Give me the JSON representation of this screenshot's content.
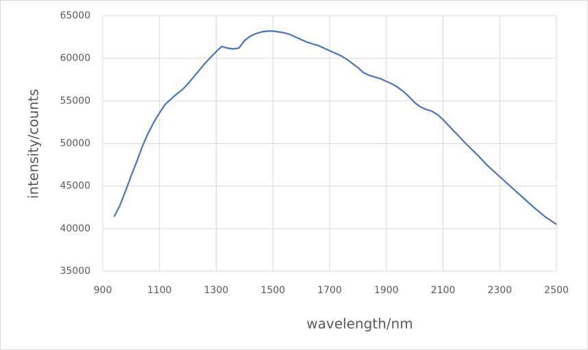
{
  "chart_data": {
    "type": "line",
    "x_label": "wavelength/nm",
    "y_label": "intensity/counts",
    "x": [
      940,
      960,
      980,
      1000,
      1020,
      1040,
      1060,
      1080,
      1100,
      1120,
      1140,
      1160,
      1180,
      1200,
      1220,
      1240,
      1260,
      1280,
      1300,
      1320,
      1340,
      1360,
      1380,
      1400,
      1420,
      1440,
      1460,
      1480,
      1500,
      1520,
      1540,
      1560,
      1580,
      1600,
      1620,
      1640,
      1660,
      1680,
      1700,
      1720,
      1740,
      1760,
      1780,
      1800,
      1820,
      1840,
      1860,
      1880,
      1900,
      1920,
      1940,
      1960,
      1980,
      2000,
      2020,
      2040,
      2060,
      2080,
      2100,
      2140,
      2180,
      2220,
      2260,
      2300,
      2340,
      2380,
      2420,
      2460,
      2500
    ],
    "series": [
      {
        "color": "#4472c4",
        "values": [
          41400,
          42700,
          44400,
          46200,
          47900,
          49700,
          51200,
          52500,
          53600,
          54600,
          55200,
          55800,
          56300,
          57000,
          57800,
          58600,
          59400,
          60100,
          60800,
          61400,
          61200,
          61100,
          61200,
          62100,
          62600,
          62900,
          63100,
          63200,
          63200,
          63100,
          63000,
          62800,
          62500,
          62200,
          61900,
          61700,
          61500,
          61200,
          60900,
          60600,
          60300,
          59900,
          59400,
          58900,
          58300,
          58000,
          57800,
          57600,
          57300,
          57000,
          56600,
          56100,
          55500,
          54800,
          54300,
          54000,
          53800,
          53400,
          52800,
          51400,
          50000,
          48700,
          47300,
          46100,
          44900,
          43700,
          42500,
          41400,
          40500
        ]
      }
    ],
    "xlim": [
      900,
      2500
    ],
    "xticks": [
      900,
      1100,
      1300,
      1500,
      1700,
      1900,
      2100,
      2300,
      2500
    ],
    "ylim": [
      35000,
      65000
    ],
    "yticks": [
      35000,
      40000,
      45000,
      50000,
      55000,
      60000,
      65000
    ],
    "grid": true
  }
}
